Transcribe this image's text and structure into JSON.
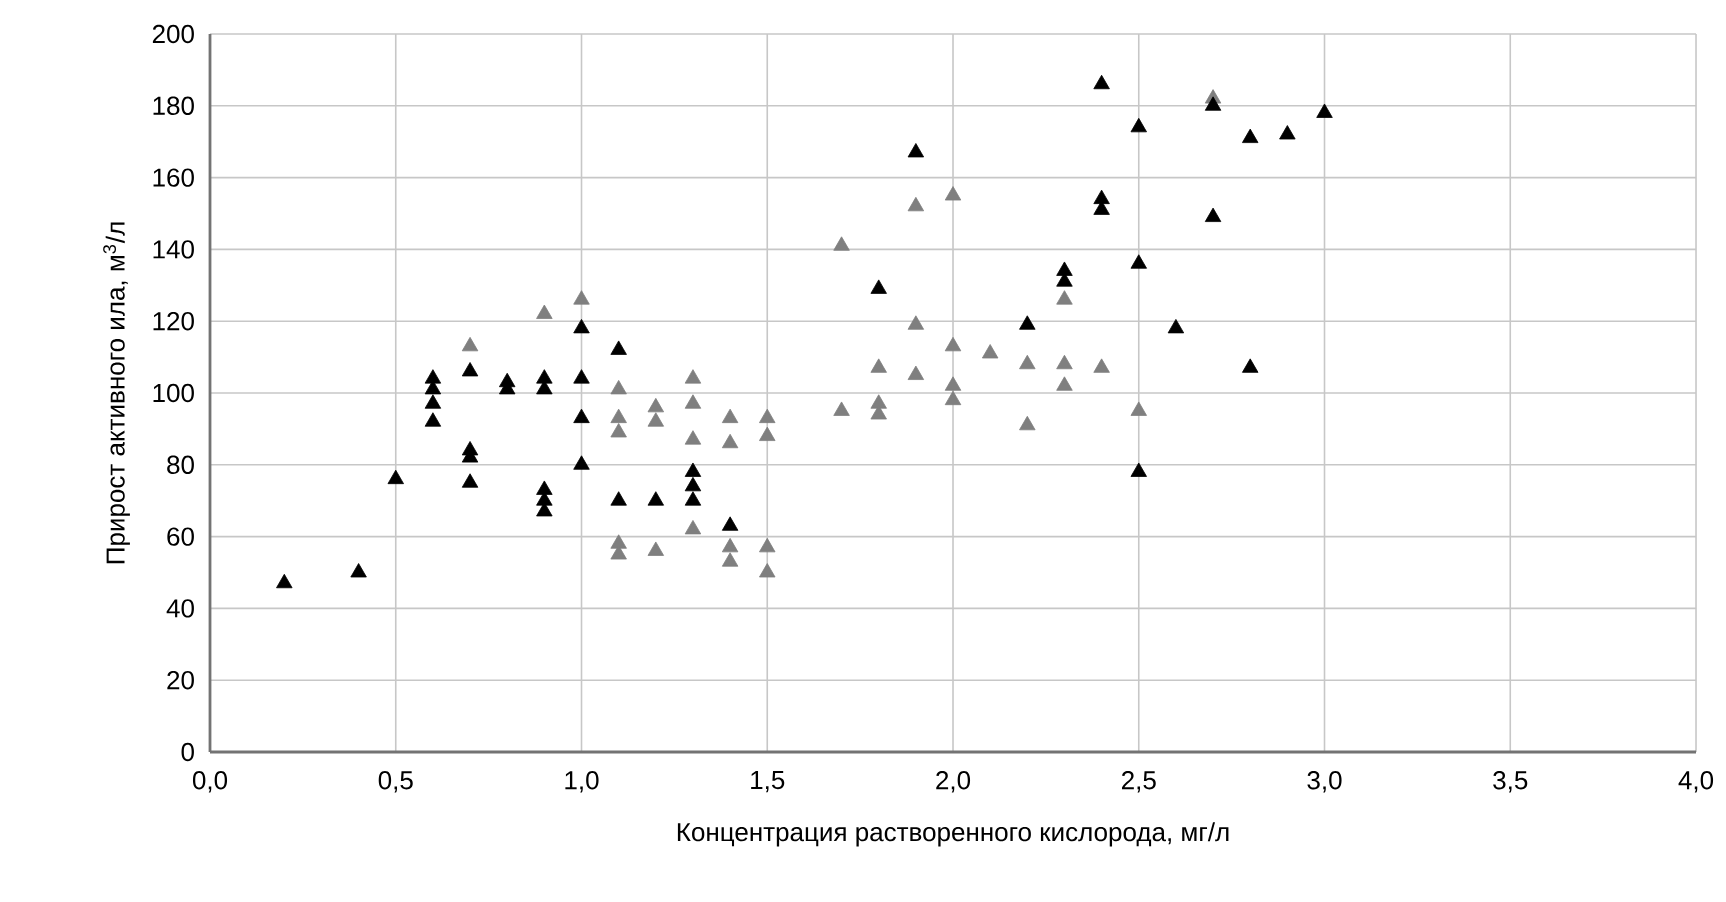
{
  "chart_data": {
    "type": "scatter",
    "xlabel": "Концентрация растворенного кислорода, мг/л",
    "ylabel": "Прирост активного ила, м$^{3}$/л",
    "xlim": [
      0,
      4
    ],
    "ylim": [
      0,
      200
    ],
    "xticks": [
      {
        "value": 0,
        "label": "0,0"
      },
      {
        "value": 0.5,
        "label": "0,5"
      },
      {
        "value": 1,
        "label": "1,0"
      },
      {
        "value": 1.5,
        "label": "1,5"
      },
      {
        "value": 2,
        "label": "2,0"
      },
      {
        "value": 2.5,
        "label": "2,5"
      },
      {
        "value": 3,
        "label": "3,0"
      },
      {
        "value": 3.5,
        "label": "3,5"
      },
      {
        "value": 4,
        "label": "4,0"
      }
    ],
    "yticks": [
      0,
      20,
      40,
      60,
      80,
      100,
      120,
      140,
      160,
      180,
      200
    ],
    "grid": true,
    "marker": "triangle",
    "series": [
      {
        "color": "#7f7f7f",
        "x": [
          0.7,
          0.9,
          1.0,
          1.1,
          1.1,
          1.1,
          1.1,
          1.1,
          1.2,
          1.2,
          1.2,
          1.3,
          1.3,
          1.3,
          1.3,
          1.4,
          1.4,
          1.4,
          1.4,
          1.5,
          1.5,
          1.5,
          1.5,
          1.7,
          1.7,
          1.8,
          1.8,
          1.8,
          1.9,
          1.9,
          1.9,
          2.0,
          2.0,
          2.0,
          2.0,
          2.1,
          2.2,
          2.2,
          2.3,
          2.3,
          2.3,
          2.4,
          2.5,
          2.7
        ],
        "values": [
          113,
          122,
          126,
          101,
          93,
          89,
          58,
          55,
          96,
          92,
          56,
          104,
          97,
          87,
          62,
          93,
          86,
          57,
          53,
          93,
          88,
          57,
          50,
          141,
          95,
          107,
          97,
          94,
          152,
          119,
          105,
          155,
          113,
          102,
          98,
          111,
          108,
          91,
          108,
          102,
          126,
          107,
          95,
          182
        ]
      },
      {
        "color": "#000000",
        "x": [
          0.2,
          0.4,
          0.5,
          0.6,
          0.6,
          0.6,
          0.6,
          0.7,
          0.7,
          0.7,
          0.7,
          0.8,
          0.8,
          0.9,
          0.9,
          0.9,
          0.9,
          0.9,
          1.0,
          1.0,
          1.0,
          1.0,
          1.1,
          1.1,
          1.2,
          1.3,
          1.3,
          1.3,
          1.4,
          1.8,
          1.9,
          2.2,
          2.3,
          2.3,
          2.4,
          2.4,
          2.4,
          2.5,
          2.5,
          2.5,
          2.6,
          2.7,
          2.7,
          2.8,
          2.8,
          2.9,
          3.0
        ],
        "values": [
          47,
          50,
          76,
          104,
          101,
          97,
          92,
          106,
          84,
          82,
          75,
          103,
          101,
          104,
          101,
          73,
          70,
          67,
          118,
          104,
          93,
          80,
          112,
          70,
          70,
          78,
          74,
          70,
          63,
          129,
          167,
          119,
          134,
          131,
          186,
          154,
          151,
          174,
          136,
          78,
          118,
          180,
          149,
          171,
          107,
          172,
          178
        ]
      }
    ]
  }
}
